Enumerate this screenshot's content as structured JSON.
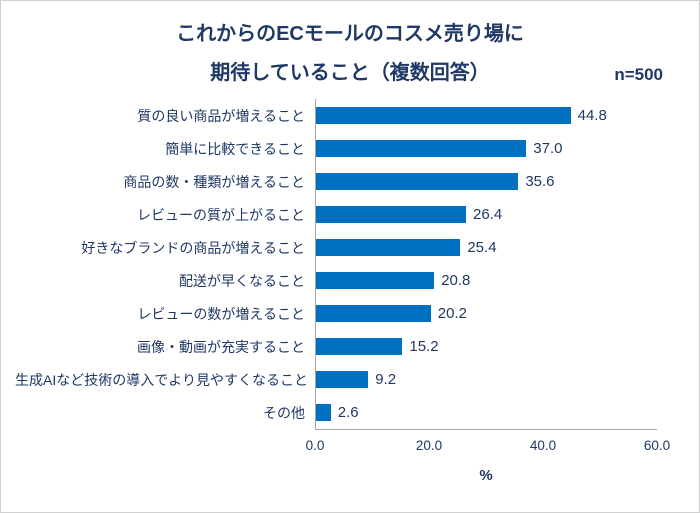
{
  "title": {
    "line1": "これからのECモールのコスメ売り場に",
    "line2": "期待していること（複数回答）",
    "sample_size": "n=500"
  },
  "chart_data": {
    "type": "bar",
    "orientation": "horizontal",
    "title": "これからのECモールのコスメ売り場に期待していること（複数回答）",
    "sample_size": "n=500",
    "categories": [
      "質の良い商品が増えること",
      "簡単に比較できること",
      "商品の数・種類が増えること",
      "レビューの質が上がること",
      "好きなブランドの商品が増えること",
      "配送が早くなること",
      "レビューの数が増えること",
      "画像・動画が充実すること",
      "生成AIなど技術の導入でより見やすくなること",
      "その他"
    ],
    "values": [
      44.8,
      37.0,
      35.6,
      26.4,
      25.4,
      20.8,
      20.2,
      15.2,
      9.2,
      2.6
    ],
    "xlim": [
      0,
      60
    ],
    "x_ticks": [
      "0.0",
      "20.0",
      "40.0",
      "60.0"
    ],
    "xlabel": "%",
    "grid": false,
    "legend": false,
    "bar_color": "#0070C0",
    "text_color": "#1F3864",
    "axis_color": "#a6a6a6"
  }
}
